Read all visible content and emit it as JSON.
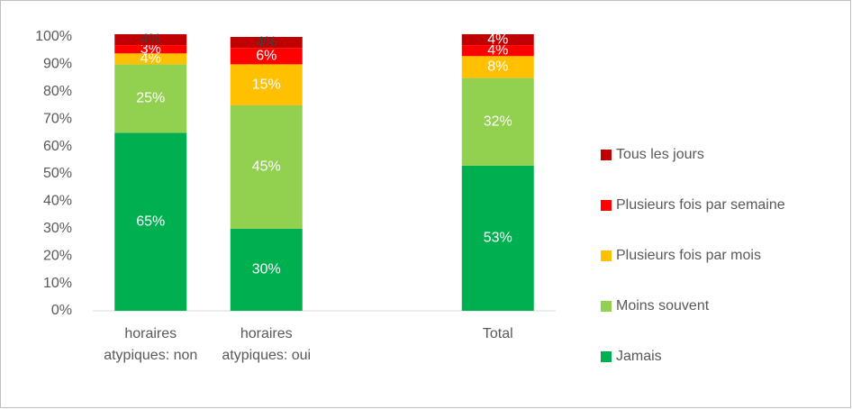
{
  "chart_data": {
    "type": "stacked_bar",
    "categories": [
      "horaires atypiques: non",
      "horaires atypiques: oui",
      null,
      "Total"
    ],
    "series": [
      {
        "name": "Jamais",
        "color": "#00b050",
        "values": [
          65,
          30,
          null,
          53
        ],
        "value_labels": [
          "65%",
          "30%",
          null,
          "53%"
        ]
      },
      {
        "name": "Moins souvent",
        "color": "#92d050",
        "values": [
          25,
          45,
          null,
          32
        ],
        "value_labels": [
          "25%",
          "45%",
          null,
          "32%"
        ]
      },
      {
        "name": "Plusieurs fois par mois",
        "color": "#ffc000",
        "values": [
          4,
          15,
          null,
          8
        ],
        "value_labels": [
          "4%",
          "15%",
          null,
          "8%"
        ]
      },
      {
        "name": "Plusieurs fois par semaine",
        "color": "#ff0000",
        "values": [
          3,
          6,
          null,
          4
        ],
        "value_labels": [
          "3%",
          "6%",
          null,
          "4%"
        ]
      },
      {
        "name": "Tous les jours",
        "color": "#c00000",
        "values": [
          4,
          4,
          null,
          4
        ],
        "value_labels": [
          "4%",
          "4%",
          null,
          "4%"
        ]
      }
    ],
    "ylim": [
      0,
      100
    ],
    "yticks": [
      {
        "value": 0,
        "label": "0%"
      },
      {
        "value": 10,
        "label": "10%"
      },
      {
        "value": 20,
        "label": "20%"
      },
      {
        "value": 30,
        "label": "30%"
      },
      {
        "value": 40,
        "label": "40%"
      },
      {
        "value": 50,
        "label": "50%"
      },
      {
        "value": 60,
        "label": "60%"
      },
      {
        "value": 70,
        "label": "70%"
      },
      {
        "value": 80,
        "label": "80%"
      },
      {
        "value": 90,
        "label": "90%"
      },
      {
        "value": 100,
        "label": "100%"
      }
    ],
    "legend": "right",
    "grid": false
  }
}
